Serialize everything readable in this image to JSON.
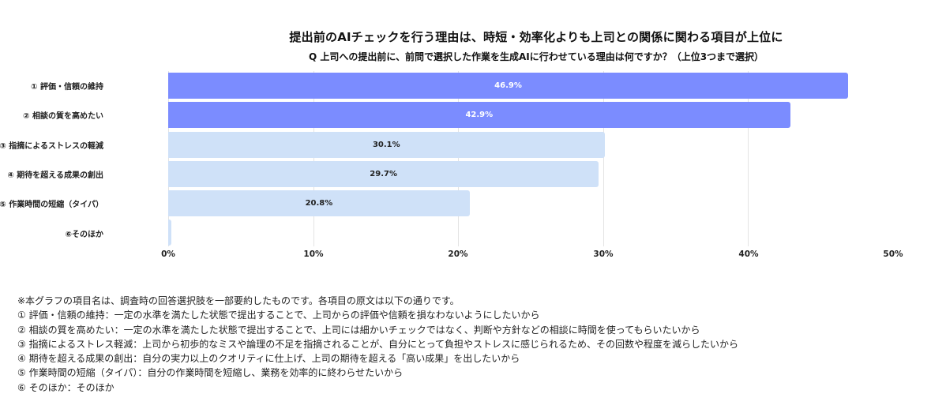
{
  "chart_data": {
    "type": "bar",
    "orientation": "horizontal",
    "title": "提出前のAIチェックを行う理由は、時短・効率化よりも上司との関係に関わる項目が上位に",
    "subtitle": "Q 上司への提出前に、前問で選択した作業を生成AIに行わせている理由は何ですか？（上位3つまで選択）",
    "categories": [
      "① 評価・信頼の維持",
      "② 相談の質を高めたい",
      "③ 指摘によるストレスの軽減",
      "④ 期待を超える成果の創出",
      "⑤ 作業時間の短縮（タイパ）",
      "⑥そのほか"
    ],
    "values": [
      46.9,
      42.9,
      30.1,
      29.7,
      20.8,
      0.2
    ],
    "value_labels": [
      "46.9%",
      "42.9%",
      "30.1%",
      "29.7%",
      "20.8%",
      ""
    ],
    "highlight": [
      true,
      true,
      false,
      false,
      false,
      false
    ],
    "xlabel": "",
    "ylabel": "",
    "xlim": [
      0,
      50
    ],
    "x_ticks": [
      "0%",
      "10%",
      "20%",
      "30%",
      "40%",
      "50%"
    ],
    "grid": true,
    "legend": "none",
    "colors": {
      "highlight": "#7B8CFF",
      "normal": "#CFE1F8",
      "highlight_label": "#FFFFFF",
      "normal_label": "#222222"
    }
  },
  "notes": [
    "※本グラフの項目名は、調査時の回答選択肢を一部要約したものです。各項目の原文は以下の通りです。",
    "① 評価・信頼の維持：一定の水準を満たした状態で提出することで、上司からの評価や信頼を損なわないようにしたいから",
    "② 相談の質を高めたい：一定の水準を満たした状態で提出することで、上司には細かいチェックではなく、判断や方針などの相談に時間を使ってもらいたいから",
    "③ 指摘によるストレス軽減：上司から初歩的なミスや論理の不足を指摘されることが、自分にとって負担やストレスに感じられるため、その回数や程度を減らしたいから",
    "④ 期待を超える成果の創出：自分の実力以上のクオリティに仕上げ、上司の期待を超える「高い成果」を出したいから",
    "⑤ 作業時間の短縮（タイパ）：自分の作業時間を短縮し、業務を効率的に終わらせたいから",
    "⑥ そのほか：そのほか"
  ]
}
